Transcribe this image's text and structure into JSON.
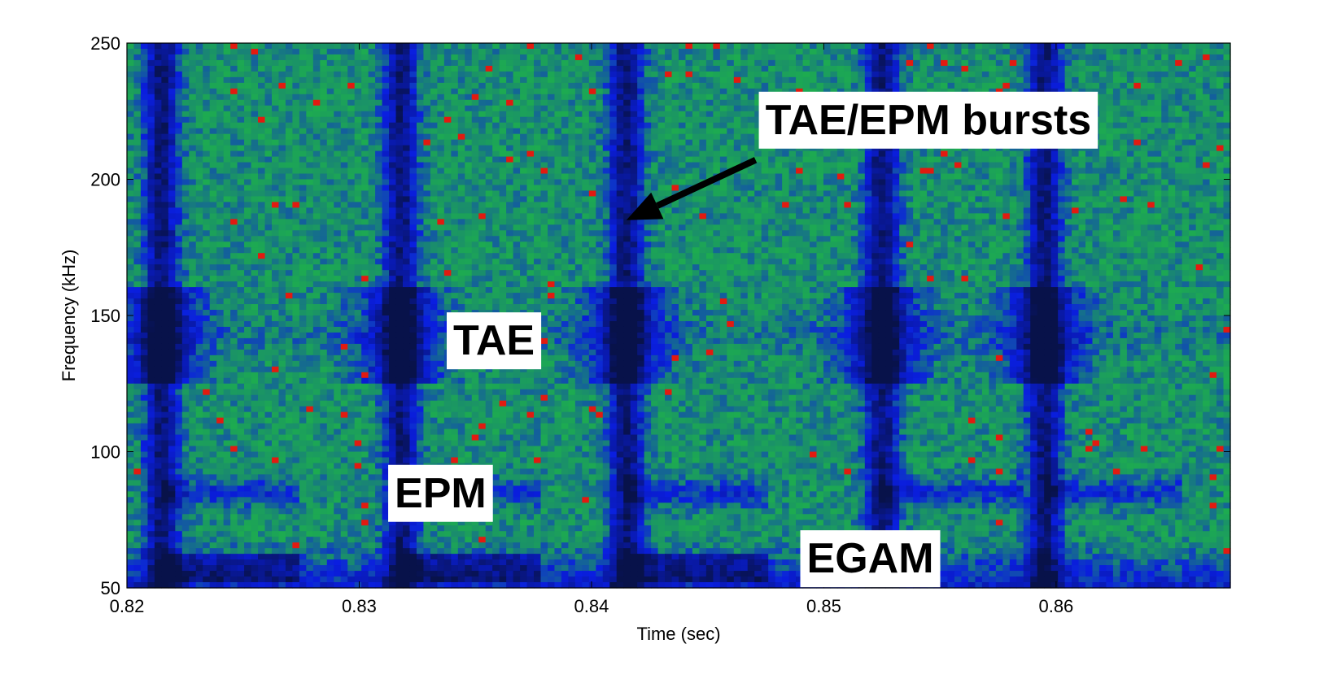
{
  "chart_data": {
    "type": "heatmap",
    "title": "",
    "xlabel": "Time (sec)",
    "ylabel": "Frequency (kHz)",
    "xlim": [
      0.82,
      0.8675
    ],
    "ylim": [
      50,
      250
    ],
    "x_ticks": [
      0.82,
      0.83,
      0.84,
      0.85,
      0.86
    ],
    "y_ticks": [
      50,
      100,
      150,
      200,
      250
    ],
    "x_tick_labels": [
      "0.82",
      "0.83",
      "0.84",
      "0.85",
      "0.86"
    ],
    "y_tick_labels": [
      "50",
      "100",
      "150",
      "200",
      "250"
    ],
    "grid": false,
    "colormap": {
      "background_green": "#22dd22",
      "mid_teal": "#1a8f6a",
      "mode_blue": "#0a1ee0",
      "strong_dark": "#08124a",
      "hot_red": "#e21a10"
    },
    "features": {
      "burst_times": [
        0.8215,
        0.8318,
        0.8415,
        0.8525,
        0.8595
      ],
      "tae_band_khz": [
        125,
        160
      ],
      "epm_freq_khz": 85,
      "egam_freq_khz": [
        52,
        62
      ]
    },
    "annotations": [
      {
        "text": "TAE/EPM bursts",
        "x": 0.8545,
        "y": 222,
        "arrow_to": [
          0.8415,
          185
        ]
      },
      {
        "text": "TAE",
        "x": 0.8358,
        "y": 141
      },
      {
        "text": "EPM",
        "x": 0.8335,
        "y": 85
      },
      {
        "text": "EGAM",
        "x": 0.852,
        "y": 61
      }
    ]
  }
}
